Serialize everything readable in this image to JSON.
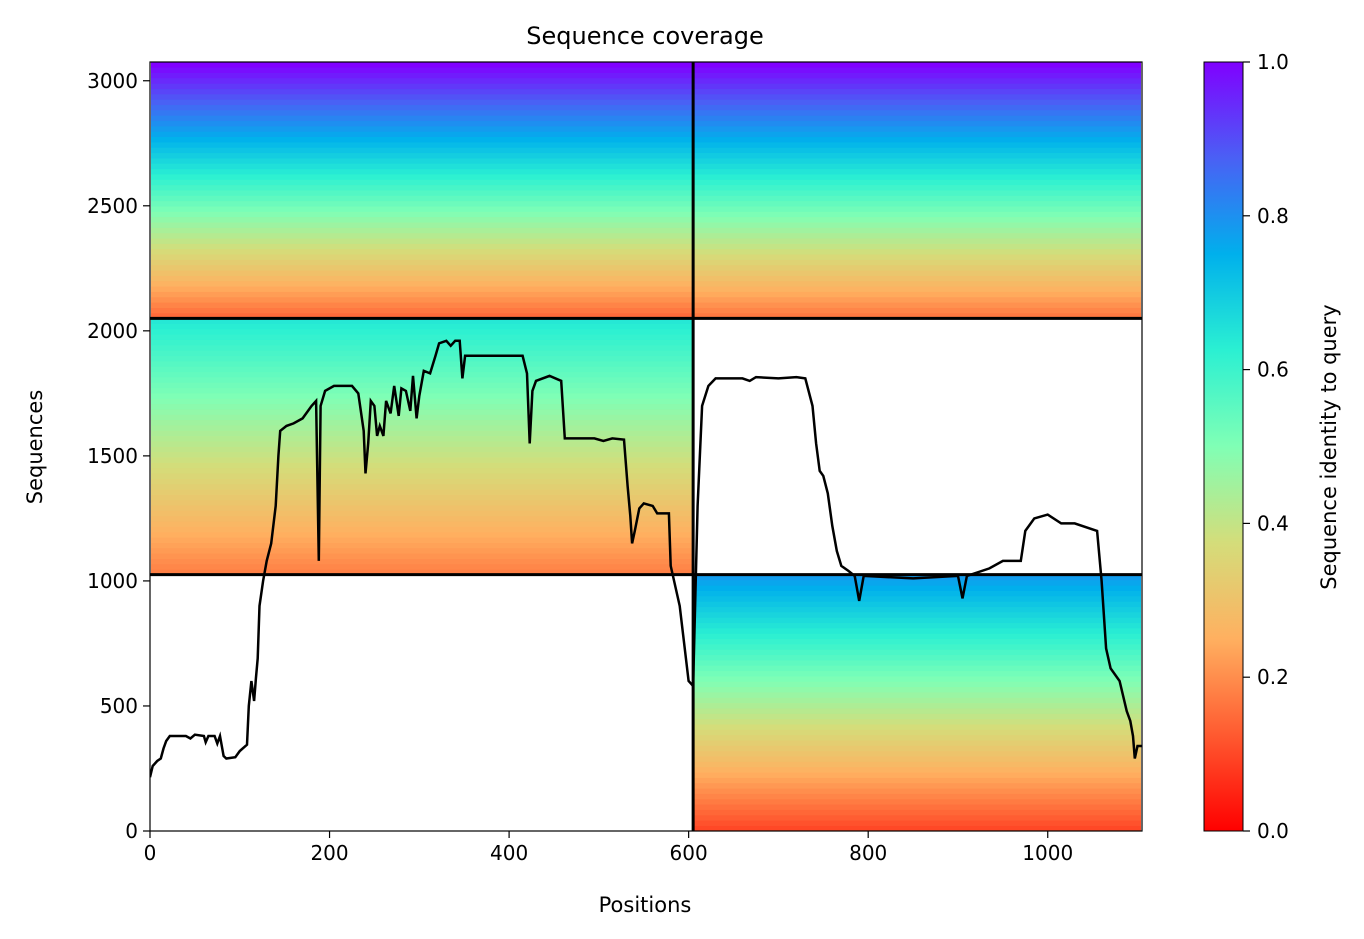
{
  "chart_data": {
    "type": "heatmap",
    "title": "Sequence coverage",
    "xlabel": "Positions",
    "ylabel": "Sequences",
    "xlim": [
      0,
      1105
    ],
    "ylim": [
      0,
      3075
    ],
    "x_ticks": [
      {
        "value": 0,
        "label": "0"
      },
      {
        "value": 200,
        "label": "200"
      },
      {
        "value": 400,
        "label": "400"
      },
      {
        "value": 600,
        "label": "600"
      },
      {
        "value": 800,
        "label": "800"
      },
      {
        "value": 1000,
        "label": "1000"
      }
    ],
    "y_ticks": [
      {
        "value": 0,
        "label": "0"
      },
      {
        "value": 500,
        "label": "500"
      },
      {
        "value": 1000,
        "label": "1000"
      },
      {
        "value": 1500,
        "label": "1500"
      },
      {
        "value": 2000,
        "label": "2000"
      },
      {
        "value": 2500,
        "label": "2500"
      },
      {
        "value": 3000,
        "label": "3000"
      }
    ],
    "colorbar": {
      "label": "Sequence identity to query",
      "colormap": "rainbow_r",
      "range": [
        0,
        1
      ],
      "ticks": [
        {
          "value": 0.0,
          "label": "0.0"
        },
        {
          "value": 0.2,
          "label": "0.2"
        },
        {
          "value": 0.4,
          "label": "0.4"
        },
        {
          "value": 0.6,
          "label": "0.6"
        },
        {
          "value": 0.8,
          "label": "0.8"
        },
        {
          "value": 1.0,
          "label": "1.0"
        }
      ]
    },
    "divider_lines": {
      "vertical_x": [
        605
      ],
      "horizontal_y": [
        1025,
        2050
      ]
    },
    "coverage_blocks": [
      {
        "x": [
          0,
          605
        ],
        "y": [
          2050,
          3075
        ],
        "top_identity": 1.0,
        "bottom_identity": 0.15,
        "extra_rows_above_bottom": 25
      },
      {
        "x": [
          605,
          1105
        ],
        "y": [
          2050,
          3075
        ],
        "top_identity": 1.0,
        "bottom_identity": 0.17
      },
      {
        "x": [
          0,
          605
        ],
        "y": [
          1025,
          2050
        ],
        "top_identity": 0.64,
        "bottom_identity": 0.18
      },
      {
        "x": [
          605,
          1105
        ],
        "y": [
          0,
          1025
        ],
        "top_identity": 0.78,
        "bottom_identity": 0.1
      }
    ],
    "coverage_line": {
      "name": "coverage",
      "color": "#000000",
      "points": [
        [
          0,
          215
        ],
        [
          3,
          260
        ],
        [
          8,
          280
        ],
        [
          12,
          290
        ],
        [
          15,
          330
        ],
        [
          18,
          360
        ],
        [
          22,
          380
        ],
        [
          40,
          380
        ],
        [
          45,
          370
        ],
        [
          50,
          385
        ],
        [
          60,
          380
        ],
        [
          62,
          355
        ],
        [
          65,
          380
        ],
        [
          72,
          380
        ],
        [
          75,
          350
        ],
        [
          78,
          380
        ],
        [
          82,
          300
        ],
        [
          85,
          290
        ],
        [
          95,
          295
        ],
        [
          100,
          320
        ],
        [
          108,
          345
        ],
        [
          110,
          500
        ],
        [
          113,
          600
        ],
        [
          116,
          520
        ],
        [
          118,
          610
        ],
        [
          120,
          690
        ],
        [
          122,
          900
        ],
        [
          126,
          1000
        ],
        [
          130,
          1080
        ],
        [
          135,
          1150
        ],
        [
          140,
          1300
        ],
        [
          143,
          1500
        ],
        [
          145,
          1600
        ],
        [
          152,
          1620
        ],
        [
          160,
          1630
        ],
        [
          170,
          1650
        ],
        [
          180,
          1700
        ],
        [
          185,
          1720
        ],
        [
          188,
          1080
        ],
        [
          190,
          1700
        ],
        [
          195,
          1760
        ],
        [
          205,
          1780
        ],
        [
          225,
          1780
        ],
        [
          232,
          1750
        ],
        [
          238,
          1600
        ],
        [
          240,
          1430
        ],
        [
          243,
          1550
        ],
        [
          246,
          1720
        ],
        [
          250,
          1700
        ],
        [
          253,
          1580
        ],
        [
          256,
          1620
        ],
        [
          260,
          1580
        ],
        [
          263,
          1720
        ],
        [
          268,
          1670
        ],
        [
          272,
          1780
        ],
        [
          277,
          1660
        ],
        [
          280,
          1770
        ],
        [
          285,
          1760
        ],
        [
          290,
          1680
        ],
        [
          293,
          1820
        ],
        [
          297,
          1650
        ],
        [
          300,
          1740
        ],
        [
          305,
          1840
        ],
        [
          312,
          1830
        ],
        [
          318,
          1900
        ],
        [
          322,
          1950
        ],
        [
          330,
          1960
        ],
        [
          335,
          1940
        ],
        [
          340,
          1960
        ],
        [
          345,
          1960
        ],
        [
          348,
          1810
        ],
        [
          351,
          1900
        ],
        [
          400,
          1900
        ],
        [
          415,
          1900
        ],
        [
          420,
          1830
        ],
        [
          423,
          1550
        ],
        [
          426,
          1760
        ],
        [
          430,
          1800
        ],
        [
          445,
          1820
        ],
        [
          458,
          1800
        ],
        [
          462,
          1570
        ],
        [
          478,
          1570
        ],
        [
          495,
          1570
        ],
        [
          505,
          1560
        ],
        [
          515,
          1570
        ],
        [
          528,
          1565
        ],
        [
          532,
          1380
        ],
        [
          535,
          1260
        ],
        [
          537,
          1150
        ],
        [
          540,
          1200
        ],
        [
          545,
          1290
        ],
        [
          550,
          1310
        ],
        [
          560,
          1300
        ],
        [
          565,
          1270
        ],
        [
          578,
          1270
        ],
        [
          580,
          1060
        ],
        [
          590,
          900
        ],
        [
          600,
          600
        ],
        [
          605,
          580
        ],
        [
          610,
          1300
        ],
        [
          615,
          1700
        ],
        [
          622,
          1780
        ],
        [
          630,
          1810
        ],
        [
          660,
          1810
        ],
        [
          668,
          1800
        ],
        [
          675,
          1815
        ],
        [
          700,
          1810
        ],
        [
          720,
          1815
        ],
        [
          730,
          1810
        ],
        [
          738,
          1700
        ],
        [
          742,
          1550
        ],
        [
          746,
          1440
        ],
        [
          750,
          1420
        ],
        [
          755,
          1350
        ],
        [
          760,
          1220
        ],
        [
          765,
          1120
        ],
        [
          770,
          1060
        ],
        [
          778,
          1040
        ],
        [
          785,
          1020
        ],
        [
          790,
          920
        ],
        [
          795,
          1020
        ],
        [
          850,
          1010
        ],
        [
          900,
          1020
        ],
        [
          905,
          930
        ],
        [
          910,
          1020
        ],
        [
          935,
          1050
        ],
        [
          950,
          1080
        ],
        [
          970,
          1080
        ],
        [
          975,
          1200
        ],
        [
          985,
          1250
        ],
        [
          1000,
          1265
        ],
        [
          1015,
          1230
        ],
        [
          1030,
          1230
        ],
        [
          1055,
          1200
        ],
        [
          1060,
          1000
        ],
        [
          1065,
          730
        ],
        [
          1070,
          650
        ],
        [
          1080,
          600
        ],
        [
          1088,
          480
        ],
        [
          1092,
          440
        ],
        [
          1095,
          380
        ],
        [
          1097,
          290
        ],
        [
          1100,
          340
        ],
        [
          1105,
          340
        ]
      ]
    }
  }
}
